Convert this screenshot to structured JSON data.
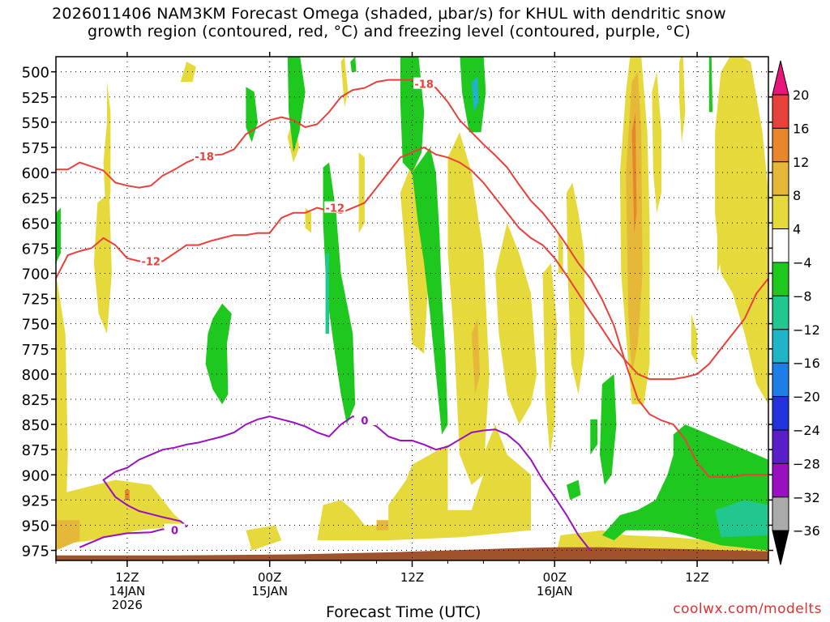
{
  "title_line1": "2026011406 NAM3KM Forecast Omega (shaded, μbar/s) for KHUL with dendritic snow",
  "title_line2": "growth region (contoured, red, °C) and freezing level (contoured, purple, °C)",
  "credit": "coolwx.com/modelts",
  "chart_data": {
    "type": "heatmap",
    "title": "2026011406 NAM3KM Forecast Omega (shaded, μbar/s) for KHUL with dendritic snow growth region (contoured, red, °C) and freezing level (contoured, purple, °C)",
    "xlabel": "Forecast Time (UTC)",
    "ylabel": "",
    "y_scale": "pressure (hPa), inverted",
    "yticks": [
      500,
      525,
      550,
      575,
      600,
      625,
      650,
      675,
      700,
      725,
      750,
      775,
      800,
      825,
      850,
      875,
      900,
      925,
      950,
      975
    ],
    "xticks": [
      {
        "hour": 6,
        "lines": [
          "12Z",
          "14JAN",
          "2026"
        ]
      },
      {
        "hour": 18,
        "lines": [
          "00Z",
          "15JAN"
        ]
      },
      {
        "hour": 30,
        "lines": [
          "12Z"
        ]
      },
      {
        "hour": 42,
        "lines": [
          "00Z",
          "16JAN"
        ]
      },
      {
        "hour": 54,
        "lines": [
          "12Z"
        ]
      }
    ],
    "xlim_hours": [
      0,
      60
    ],
    "ylim_hpa": [
      485,
      985
    ],
    "grid": true,
    "colorbar": {
      "units": "μbar/s",
      "labels": [
        20,
        16,
        12,
        8,
        4,
        -4,
        -8,
        -12,
        -16,
        -20,
        -24,
        -28,
        -32,
        -36
      ],
      "bins": [
        {
          "range": [
            16,
            20
          ],
          "color": "#e8403a"
        },
        {
          "range": [
            12,
            16
          ],
          "color": "#e8862c"
        },
        {
          "range": [
            8,
            12
          ],
          "color": "#e6b83a"
        },
        {
          "range": [
            4,
            8
          ],
          "color": "#e6d93c"
        },
        {
          "range": [
            -4,
            4
          ],
          "color": "#ffffff"
        },
        {
          "range": [
            -8,
            -4
          ],
          "color": "#1ec81e"
        },
        {
          "range": [
            -12,
            -8
          ],
          "color": "#20c890"
        },
        {
          "range": [
            -16,
            -12
          ],
          "color": "#1fb4c8"
        },
        {
          "range": [
            -20,
            -16
          ],
          "color": "#1e7ee8"
        },
        {
          "range": [
            -24,
            -20
          ],
          "color": "#2233dd"
        },
        {
          "range": [
            -28,
            -24
          ],
          "color": "#5a1ec8"
        },
        {
          "range": [
            -32,
            -28
          ],
          "color": "#9a10c0"
        },
        {
          "range": [
            -36,
            -32
          ],
          "color": "#aaaaaa"
        }
      ],
      "over_color": "#e8157a",
      "under_color": "#000000"
    },
    "contours": {
      "dgz_color": "#e8403a",
      "freezing_color": "#9a10c0",
      "minus18": {
        "label": "-18",
        "points": [
          [
            0,
            597
          ],
          [
            1,
            597
          ],
          [
            2,
            590
          ],
          [
            3,
            594
          ],
          [
            4,
            598
          ],
          [
            5,
            610
          ],
          [
            6,
            613
          ],
          [
            7,
            615
          ],
          [
            8,
            613
          ],
          [
            9,
            603
          ],
          [
            10,
            597
          ],
          [
            11,
            590
          ],
          [
            12,
            585
          ],
          [
            13,
            583
          ],
          [
            14,
            582
          ],
          [
            15,
            577
          ],
          [
            16,
            562
          ],
          [
            17,
            555
          ],
          [
            18,
            548
          ],
          [
            19,
            545
          ],
          [
            20,
            548
          ],
          [
            21,
            555
          ],
          [
            22,
            552
          ],
          [
            23,
            540
          ],
          [
            24,
            525
          ],
          [
            25,
            518
          ],
          [
            26,
            516
          ],
          [
            27,
            510
          ],
          [
            28,
            508
          ],
          [
            29,
            508
          ],
          [
            30,
            508
          ],
          [
            31,
            510
          ],
          [
            32,
            516
          ],
          [
            33,
            530
          ],
          [
            34,
            548
          ],
          [
            35,
            560
          ],
          [
            36,
            572
          ],
          [
            37,
            583
          ],
          [
            38,
            595
          ],
          [
            39,
            612
          ],
          [
            40,
            628
          ],
          [
            41,
            640
          ],
          [
            42,
            655
          ],
          [
            43,
            672
          ],
          [
            44,
            690
          ],
          [
            45,
            705
          ],
          [
            46,
            726
          ],
          [
            47,
            752
          ],
          [
            48,
            790
          ],
          [
            49,
            825
          ],
          [
            50,
            840
          ],
          [
            51,
            846
          ],
          [
            52,
            850
          ],
          [
            53,
            865
          ],
          [
            54,
            888
          ],
          [
            55,
            902
          ],
          [
            56,
            902
          ],
          [
            57,
            902
          ],
          [
            58,
            900
          ],
          [
            59,
            900
          ],
          [
            60,
            900
          ]
        ]
      },
      "minus12": {
        "label": "-12",
        "points": [
          [
            0,
            705
          ],
          [
            1,
            682
          ],
          [
            2,
            678
          ],
          [
            3,
            675
          ],
          [
            4,
            665
          ],
          [
            5,
            672
          ],
          [
            6,
            685
          ],
          [
            7,
            688
          ],
          [
            8,
            688
          ],
          [
            9,
            688
          ],
          [
            10,
            680
          ],
          [
            11,
            672
          ],
          [
            12,
            672
          ],
          [
            13,
            668
          ],
          [
            14,
            665
          ],
          [
            15,
            662
          ],
          [
            16,
            662
          ],
          [
            17,
            660
          ],
          [
            18,
            660
          ],
          [
            19,
            645
          ],
          [
            20,
            640
          ],
          [
            21,
            640
          ],
          [
            22,
            635
          ],
          [
            23,
            638
          ],
          [
            24,
            640
          ],
          [
            25,
            635
          ],
          [
            26,
            630
          ],
          [
            27,
            615
          ],
          [
            28,
            600
          ],
          [
            29,
            585
          ],
          [
            30,
            580
          ],
          [
            31,
            575
          ],
          [
            32,
            582
          ],
          [
            33,
            585
          ],
          [
            34,
            590
          ],
          [
            35,
            598
          ],
          [
            36,
            610
          ],
          [
            37,
            625
          ],
          [
            38,
            640
          ],
          [
            39,
            655
          ],
          [
            40,
            665
          ],
          [
            41,
            672
          ],
          [
            42,
            685
          ],
          [
            43,
            702
          ],
          [
            44,
            720
          ],
          [
            45,
            738
          ],
          [
            46,
            755
          ],
          [
            47,
            773
          ],
          [
            48,
            787
          ],
          [
            49,
            800
          ],
          [
            50,
            805
          ],
          [
            51,
            805
          ],
          [
            52,
            805
          ],
          [
            53,
            803
          ],
          [
            54,
            800
          ],
          [
            55,
            790
          ],
          [
            56,
            775
          ],
          [
            57,
            760
          ],
          [
            58,
            745
          ],
          [
            59,
            720
          ],
          [
            60,
            705
          ]
        ]
      },
      "zero": {
        "label": "0",
        "points": [
          [
            5,
            897
          ],
          [
            6,
            893
          ],
          [
            7,
            885
          ],
          [
            8,
            880
          ],
          [
            9,
            875
          ],
          [
            10,
            873
          ],
          [
            11,
            870
          ],
          [
            12,
            868
          ],
          [
            13,
            865
          ],
          [
            14,
            862
          ],
          [
            15,
            858
          ],
          [
            16,
            850
          ],
          [
            17,
            845
          ],
          [
            18,
            842
          ],
          [
            19,
            845
          ],
          [
            20,
            848
          ],
          [
            21,
            852
          ],
          [
            22,
            858
          ],
          [
            23,
            862
          ],
          [
            24,
            850
          ],
          [
            25,
            842
          ],
          [
            26,
            846
          ],
          [
            27,
            852
          ],
          [
            28,
            862
          ],
          [
            29,
            866
          ],
          [
            30,
            866
          ],
          [
            31,
            870
          ],
          [
            32,
            875
          ],
          [
            33,
            872
          ],
          [
            34,
            865
          ],
          [
            35,
            858
          ],
          [
            36,
            856
          ],
          [
            37,
            855
          ],
          [
            38,
            860
          ],
          [
            39,
            870
          ],
          [
            40,
            885
          ],
          [
            41,
            905
          ],
          [
            42,
            922
          ],
          [
            43,
            940
          ],
          [
            44,
            960
          ],
          [
            45,
            975
          ]
        ]
      }
    },
    "freezing_low_contour": {
      "label": "0",
      "approx_range_hours": [
        0,
        11
      ],
      "approx_pressure_hpa": [
        945,
        980
      ]
    },
    "omega_regions_note": "positive (yellow/orange) and negative (green/teal) omega bands as shaded; ground shown in brown near 975-985 hPa",
    "ground_color": "#a0522d"
  }
}
